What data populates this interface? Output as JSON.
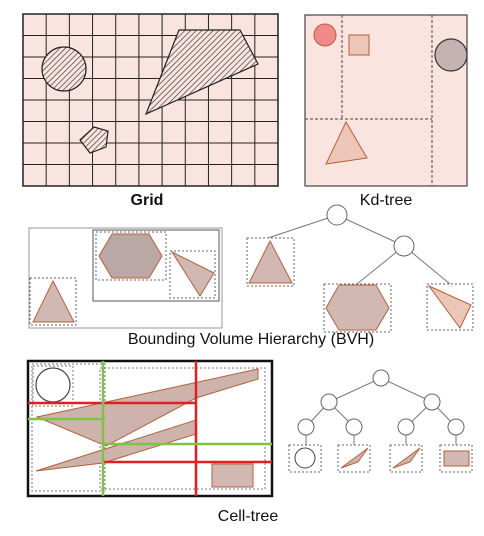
{
  "captions": {
    "grid": "Grid",
    "kdtree": "Kd-tree",
    "bvh": "Bounding Volume Hierarchy (BVH)",
    "celltree": "Cell-tree"
  },
  "colors": {
    "panel_fill": "#f9e4e0",
    "shape_fill": "#d2b8b2",
    "shape_stroke": "#b5603a",
    "grid_line": "#222222",
    "red_split": "#e02020",
    "green_split": "#7cc544",
    "highlight_circle": "#f08a8a"
  }
}
